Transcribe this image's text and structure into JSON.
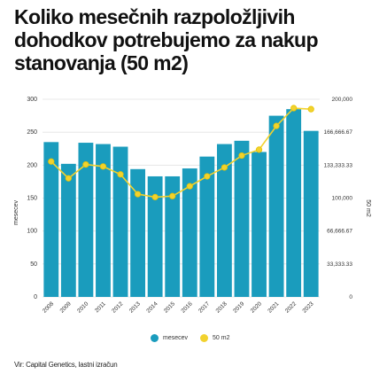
{
  "title": "Koliko mesečnih razpoložljivih dohodkov potrebujemo za nakup stanovanja (50 m2)",
  "source": "Vir: Capital Genetics, lastni izračun",
  "colors": {
    "bar": "#1a9cbd",
    "line": "#f2d22e",
    "marker_edge": "#e8c400"
  },
  "chart_data": {
    "type": "bar",
    "categories": [
      "2008",
      "2009",
      "2010",
      "2011",
      "2012",
      "2013",
      "2014",
      "2015",
      "2016",
      "2017",
      "2018",
      "2019",
      "2020",
      "2021",
      "2022",
      "2023"
    ],
    "series": [
      {
        "name": "mesecev",
        "type": "bar",
        "axis": "left",
        "values": [
          235,
          202,
          234,
          232,
          228,
          194,
          183,
          183,
          195,
          213,
          232,
          237,
          220,
          275,
          285,
          252
        ]
      },
      {
        "name": "50 m2",
        "type": "line",
        "axis": "right",
        "values": [
          137000,
          120000,
          134000,
          132000,
          124000,
          104000,
          101000,
          102000,
          112000,
          122000,
          131000,
          143000,
          149000,
          173000,
          191000,
          190000
        ]
      }
    ],
    "ylabel": "mesecev",
    "y2label": "50 m2",
    "ylim": [
      0,
      300
    ],
    "y2lim": [
      0,
      200000
    ],
    "yticks": [
      "0",
      "50",
      "100",
      "150",
      "200",
      "250",
      "300"
    ],
    "y2ticks": [
      "0",
      "33,333.33",
      "66,666.67",
      "100,000",
      "133,333.33",
      "166,666.67",
      "200,000"
    ],
    "grid": true,
    "legend": "bottom"
  }
}
